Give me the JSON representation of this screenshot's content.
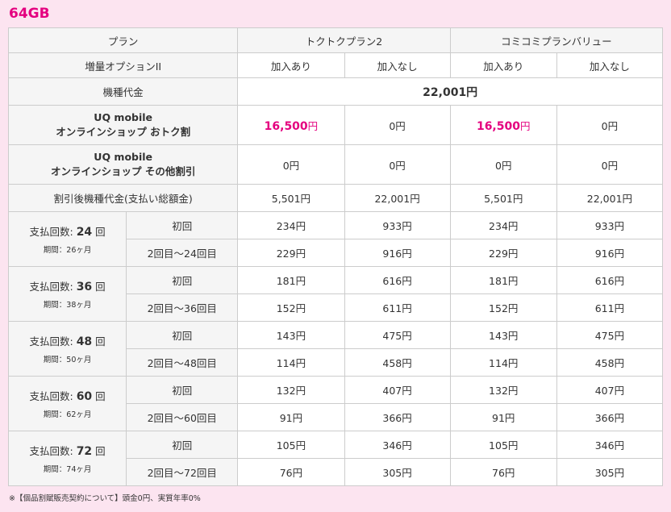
{
  "title": "64GB",
  "header": {
    "plan_label": "プラン",
    "plan_a": "トクトクプラン2",
    "plan_b": "コミコミプランバリュー",
    "option_label": "増量オプションII",
    "join_yes": "加入あり",
    "join_no": "加入なし"
  },
  "device_price": {
    "label": "機種代金",
    "value": "22,001円"
  },
  "discount_otoku": {
    "label_line1": "UQ mobile",
    "label_line2": "オンラインショップ おトク割",
    "amount_pink": "16,500",
    "yen": "円",
    "values": [
      "16,500円",
      "0円",
      "16,500円",
      "0円"
    ]
  },
  "discount_other": {
    "label_line1": "UQ mobile",
    "label_line2": "オンラインショップ その他割引",
    "values": [
      "0円",
      "0円",
      "0円",
      "0円"
    ]
  },
  "after_discount": {
    "label": "割引後機種代金(支払い総額金)",
    "values": [
      "5,501円",
      "22,001円",
      "5,501円",
      "22,001円"
    ]
  },
  "payments": [
    {
      "prefix": "支払回数:",
      "count": "24",
      "suffix": "回",
      "period": "期間：26ヶ月",
      "first_label": "初回",
      "first": [
        "234円",
        "933円",
        "234円",
        "933円"
      ],
      "rest_label": "2回目〜24回目",
      "rest": [
        "229円",
        "916円",
        "229円",
        "916円"
      ]
    },
    {
      "prefix": "支払回数:",
      "count": "36",
      "suffix": "回",
      "period": "期間：38ヶ月",
      "first_label": "初回",
      "first": [
        "181円",
        "616円",
        "181円",
        "616円"
      ],
      "rest_label": "2回目〜36回目",
      "rest": [
        "152円",
        "611円",
        "152円",
        "611円"
      ]
    },
    {
      "prefix": "支払回数:",
      "count": "48",
      "suffix": "回",
      "period": "期間：50ヶ月",
      "first_label": "初回",
      "first": [
        "143円",
        "475円",
        "143円",
        "475円"
      ],
      "rest_label": "2回目〜48回目",
      "rest": [
        "114円",
        "458円",
        "114円",
        "458円"
      ]
    },
    {
      "prefix": "支払回数:",
      "count": "60",
      "suffix": "回",
      "period": "期間：62ヶ月",
      "first_label": "初回",
      "first": [
        "132円",
        "407円",
        "132円",
        "407円"
      ],
      "rest_label": "2回目〜60回目",
      "rest": [
        "91円",
        "366円",
        "91円",
        "366円"
      ]
    },
    {
      "prefix": "支払回数:",
      "count": "72",
      "suffix": "回",
      "period": "期間：74ヶ月",
      "first_label": "初回",
      "first": [
        "105円",
        "346円",
        "105円",
        "346円"
      ],
      "rest_label": "2回目〜72回目",
      "rest": [
        "76円",
        "305円",
        "76円",
        "305円"
      ]
    }
  ],
  "note": "※【個品割賦販売契約について】頭金0円、実質年率0%"
}
